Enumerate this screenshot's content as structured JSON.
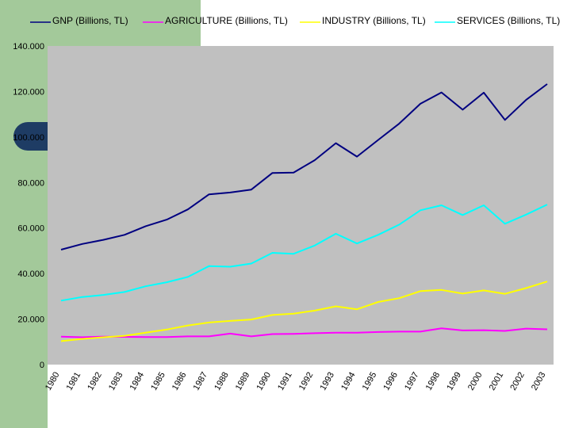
{
  "chart_data": {
    "type": "line",
    "title": "",
    "xlabel": "",
    "ylabel": "",
    "ylim": [
      0,
      140000
    ],
    "y_ticks": [
      "0",
      "20.000",
      "40.000",
      "60.000",
      "80.000",
      "100.000",
      "120.000",
      "140.000"
    ],
    "y_tick_values": [
      0,
      20000,
      40000,
      60000,
      80000,
      100000,
      120000,
      140000
    ],
    "grid": false,
    "legend_position": "top",
    "categories": [
      "1980",
      "1981",
      "1982",
      "1983",
      "1984",
      "1985",
      "1986",
      "1987",
      "1988",
      "1989",
      "1990",
      "1991",
      "1992",
      "1993",
      "1994",
      "1995",
      "1996",
      "1997",
      "1998",
      "1999",
      "2000",
      "2001",
      "2002",
      "2003"
    ],
    "series": [
      {
        "name": "GNP (Billions, TL)",
        "color": "#000080",
        "values": [
          50500,
          53000,
          54800,
          57000,
          60800,
          63700,
          68200,
          74800,
          75600,
          76900,
          84200,
          84400,
          89800,
          97300,
          91400,
          98700,
          105900,
          114600,
          119600,
          112000,
          119500,
          107500,
          116300,
          123300
        ]
      },
      {
        "name": "AGRICULTURE (Billions, TL)",
        "color": "#ff00ff",
        "values": [
          12300,
          12000,
          12300,
          12200,
          12100,
          12100,
          12400,
          12400,
          13600,
          12400,
          13400,
          13500,
          13800,
          14000,
          14000,
          14300,
          14500,
          14500,
          15900,
          15000,
          15100,
          14800,
          15800,
          15500
        ]
      },
      {
        "name": "INDUSTRY (Billions, TL)",
        "color": "#ffff00",
        "values": [
          10300,
          11300,
          12000,
          12600,
          14000,
          15400,
          17200,
          18500,
          19200,
          19800,
          21800,
          22400,
          23700,
          25600,
          24300,
          27500,
          29200,
          32300,
          32800,
          31200,
          32600,
          31100,
          33600,
          36500
        ]
      },
      {
        "name": "SERVICES (Billions, TL)",
        "color": "#00ffff",
        "values": [
          28100,
          29700,
          30600,
          31900,
          34400,
          36200,
          38500,
          43300,
          43000,
          44400,
          49100,
          48700,
          52300,
          57500,
          53200,
          57000,
          61500,
          67800,
          70000,
          65700,
          70000,
          61900,
          65900,
          70300
        ]
      }
    ]
  }
}
